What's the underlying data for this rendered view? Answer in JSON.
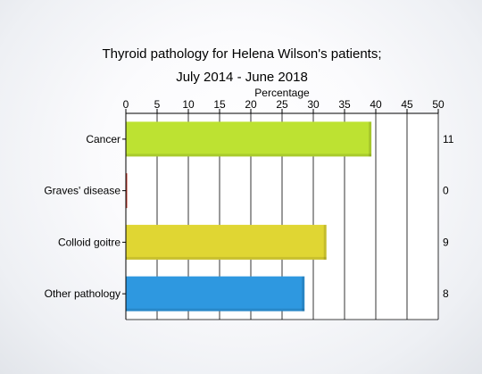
{
  "chart_data": {
    "type": "bar",
    "orientation": "horizontal",
    "title_lines": [
      "Thyroid pathology for Helena Wilson's patients;",
      "July 2014 - June 2018"
    ],
    "xlabel": "Percentage",
    "xlim": [
      0,
      50
    ],
    "x_ticks": [
      "0",
      "5",
      "10",
      "15",
      "20",
      "25",
      "30",
      "35",
      "40",
      "45",
      "50"
    ],
    "grid": true,
    "categories": [
      "Cancer",
      "Graves' disease",
      "Colloid goitre",
      "Other pathology"
    ],
    "values": [
      39.3,
      0,
      32.1,
      28.6
    ],
    "counts": [
      "11",
      "0",
      "9",
      "8"
    ],
    "colors": [
      "#bde232",
      "#c0392b",
      "#e0d633",
      "#2e98e0"
    ]
  }
}
